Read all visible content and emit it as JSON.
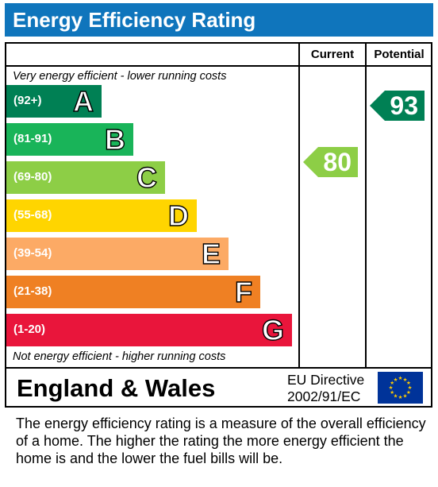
{
  "title": "Energy Efficiency Rating",
  "columns": {
    "current": "Current",
    "potential": "Potential"
  },
  "top_note": "Very energy efficient - lower running costs",
  "bottom_note": "Not energy efficient - higher running costs",
  "footer": {
    "region": "England & Wales",
    "directive_line1": "EU Directive",
    "directive_line2": "2002/91/EC"
  },
  "description": "The energy efficiency rating is a measure of the overall efficiency of a home.  The higher the rating the more energy efficient the home is and the lower the fuel bills will be.",
  "chart_data": {
    "type": "bar",
    "title": "Energy Efficiency Rating",
    "categories": [
      "A",
      "B",
      "C",
      "D",
      "E",
      "F",
      "G"
    ],
    "ranges": [
      "(92+)",
      "(81-91)",
      "(69-80)",
      "(55-68)",
      "(39-54)",
      "(21-38)",
      "(1-20)"
    ],
    "colors": [
      "#008054",
      "#19b459",
      "#8dce46",
      "#ffd500",
      "#fcaa65",
      "#ef8023",
      "#e9153b"
    ],
    "current": {
      "value": 80,
      "band": "C",
      "color": "#8dce46"
    },
    "potential": {
      "value": 93,
      "band": "A",
      "color": "#008054"
    }
  },
  "colors": {
    "header": "#0f75bc",
    "flag": "#003399",
    "stars": "#ffcc00"
  }
}
